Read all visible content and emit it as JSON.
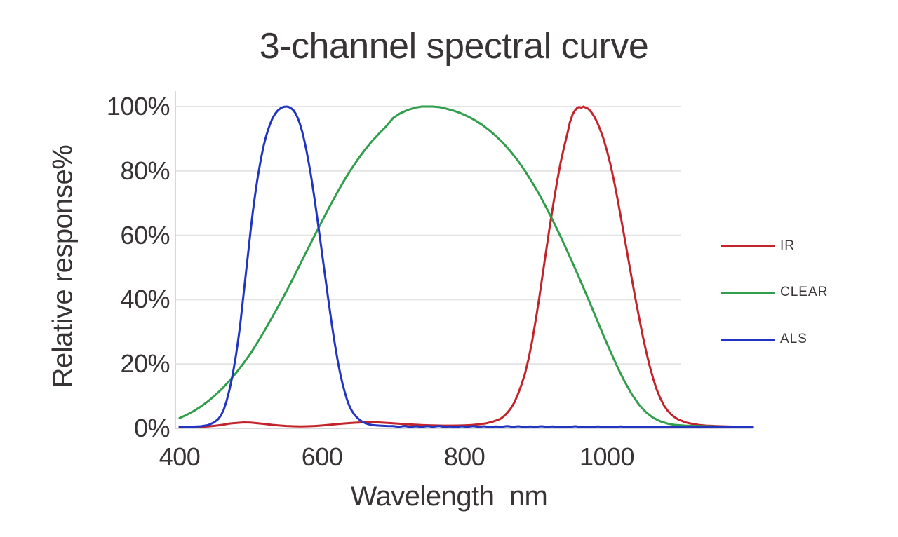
{
  "title": "3-channel spectral curve",
  "axes": {
    "x_label": "Wavelength  nm",
    "y_label": "Relative response%"
  },
  "legend": [
    {
      "label": "IR"
    },
    {
      "label": "CLEAR"
    },
    {
      "label": "ALS"
    }
  ],
  "colors": {
    "background": "#ffffff",
    "text": "#383435",
    "grid": "#e4e4e4",
    "axis": "#d8d8d8"
  },
  "chart_data": {
    "type": "line",
    "title": "3-channel spectral curve",
    "xlabel": "Wavelength  nm",
    "ylabel": "Relative response%",
    "xlim": [
      400,
      1205
    ],
    "ylim": [
      0,
      100
    ],
    "x_ticks": [
      400,
      600,
      800,
      1000
    ],
    "y_ticks": [
      0,
      20,
      40,
      60,
      80,
      100
    ],
    "y_tick_labels": [
      "0%",
      "20%",
      "40%",
      "60%",
      "80%",
      "100%"
    ],
    "grid": "horizontal",
    "legend_position": "right",
    "series": [
      {
        "name": "IR",
        "color": "#c3242b",
        "points": [
          [
            400,
            0.3
          ],
          [
            420,
            0.4
          ],
          [
            440,
            0.6
          ],
          [
            450,
            0.8
          ],
          [
            460,
            1.1
          ],
          [
            470,
            1.5
          ],
          [
            480,
            1.7
          ],
          [
            490,
            1.85
          ],
          [
            500,
            1.8
          ],
          [
            510,
            1.6
          ],
          [
            520,
            1.35
          ],
          [
            530,
            1.1
          ],
          [
            540,
            0.9
          ],
          [
            550,
            0.75
          ],
          [
            560,
            0.65
          ],
          [
            570,
            0.6
          ],
          [
            580,
            0.65
          ],
          [
            590,
            0.75
          ],
          [
            600,
            0.9
          ],
          [
            610,
            1.1
          ],
          [
            620,
            1.3
          ],
          [
            630,
            1.5
          ],
          [
            640,
            1.65
          ],
          [
            650,
            1.8
          ],
          [
            660,
            1.88
          ],
          [
            670,
            1.92
          ],
          [
            680,
            1.85
          ],
          [
            690,
            1.72
          ],
          [
            700,
            1.58
          ],
          [
            710,
            1.42
          ],
          [
            720,
            1.28
          ],
          [
            730,
            1.15
          ],
          [
            740,
            1.03
          ],
          [
            750,
            0.95
          ],
          [
            760,
            0.9
          ],
          [
            770,
            0.86
          ],
          [
            780,
            0.85
          ],
          [
            790,
            0.88
          ],
          [
            800,
            0.93
          ],
          [
            810,
            1.05
          ],
          [
            820,
            1.25
          ],
          [
            830,
            1.55
          ],
          [
            840,
            2.1
          ],
          [
            850,
            2.9
          ],
          [
            855,
            3.7
          ],
          [
            860,
            4.8
          ],
          [
            865,
            6.2
          ],
          [
            870,
            8
          ],
          [
            875,
            10.5
          ],
          [
            880,
            13.5
          ],
          [
            885,
            17
          ],
          [
            890,
            21.5
          ],
          [
            895,
            27
          ],
          [
            900,
            33.5
          ],
          [
            905,
            40.5
          ],
          [
            910,
            48
          ],
          [
            915,
            55.5
          ],
          [
            920,
            63
          ],
          [
            925,
            70
          ],
          [
            930,
            76.5
          ],
          [
            935,
            82.5
          ],
          [
            940,
            87.5
          ],
          [
            945,
            92
          ],
          [
            948,
            95
          ],
          [
            952,
            97.6
          ],
          [
            955,
            98.7
          ],
          [
            958,
            99.5
          ],
          [
            961,
            99.9
          ],
          [
            964,
            99.6
          ],
          [
            967,
            100
          ],
          [
            970,
            99.7
          ],
          [
            974,
            99.3
          ],
          [
            978,
            98.3
          ],
          [
            982,
            97
          ],
          [
            986,
            95.3
          ],
          [
            990,
            93.2
          ],
          [
            995,
            90.2
          ],
          [
            1000,
            86.4
          ],
          [
            1005,
            82
          ],
          [
            1010,
            77
          ],
          [
            1015,
            71.3
          ],
          [
            1020,
            65.2
          ],
          [
            1025,
            59
          ],
          [
            1030,
            52.8
          ],
          [
            1035,
            46.6
          ],
          [
            1040,
            40.5
          ],
          [
            1045,
            34.7
          ],
          [
            1050,
            29.2
          ],
          [
            1055,
            24.1
          ],
          [
            1060,
            19.5
          ],
          [
            1065,
            15.5
          ],
          [
            1070,
            12.1
          ],
          [
            1075,
            9.4
          ],
          [
            1080,
            7.2
          ],
          [
            1085,
            5.6
          ],
          [
            1090,
            4.4
          ],
          [
            1095,
            3.5
          ],
          [
            1100,
            2.8
          ],
          [
            1110,
            1.9
          ],
          [
            1120,
            1.4
          ],
          [
            1130,
            1.05
          ],
          [
            1140,
            0.85
          ],
          [
            1160,
            0.65
          ],
          [
            1180,
            0.52
          ],
          [
            1205,
            0.42
          ]
        ]
      },
      {
        "name": "CLEAR",
        "color": "#319e4c",
        "points": [
          [
            400,
            3.2
          ],
          [
            410,
            4.2
          ],
          [
            420,
            5.4
          ],
          [
            430,
            6.8
          ],
          [
            440,
            8.4
          ],
          [
            450,
            10.3
          ],
          [
            460,
            12.4
          ],
          [
            470,
            14.8
          ],
          [
            480,
            17.4
          ],
          [
            490,
            20.3
          ],
          [
            500,
            23.4
          ],
          [
            510,
            26.9
          ],
          [
            520,
            30.6
          ],
          [
            530,
            34.5
          ],
          [
            540,
            38.5
          ],
          [
            550,
            42.6
          ],
          [
            560,
            46.9
          ],
          [
            570,
            51.3
          ],
          [
            580,
            55.7
          ],
          [
            590,
            60.1
          ],
          [
            600,
            64.4
          ],
          [
            610,
            68.6
          ],
          [
            620,
            72.7
          ],
          [
            630,
            76.6
          ],
          [
            640,
            80.2
          ],
          [
            650,
            83.5
          ],
          [
            660,
            86.5
          ],
          [
            670,
            89.2
          ],
          [
            680,
            91.6
          ],
          [
            690,
            93.8
          ],
          [
            700,
            96.5
          ],
          [
            710,
            97.9
          ],
          [
            720,
            98.9
          ],
          [
            730,
            99.6
          ],
          [
            740,
            100
          ],
          [
            755,
            100
          ],
          [
            765,
            99.8
          ],
          [
            775,
            99.3
          ],
          [
            785,
            98.7
          ],
          [
            795,
            97.9
          ],
          [
            805,
            96.9
          ],
          [
            815,
            95.7
          ],
          [
            825,
            94.3
          ],
          [
            835,
            92.6
          ],
          [
            845,
            90.7
          ],
          [
            855,
            88.5
          ],
          [
            865,
            86
          ],
          [
            875,
            83.2
          ],
          [
            885,
            80
          ],
          [
            895,
            76.5
          ],
          [
            905,
            72.7
          ],
          [
            915,
            68.6
          ],
          [
            925,
            64.2
          ],
          [
            935,
            59.6
          ],
          [
            945,
            54.8
          ],
          [
            955,
            49.9
          ],
          [
            965,
            44.8
          ],
          [
            975,
            39.6
          ],
          [
            985,
            34.3
          ],
          [
            995,
            29
          ],
          [
            1005,
            23.9
          ],
          [
            1015,
            19
          ],
          [
            1025,
            14.5
          ],
          [
            1035,
            10.6
          ],
          [
            1045,
            7.4
          ],
          [
            1055,
            5
          ],
          [
            1065,
            3.3
          ],
          [
            1075,
            2.2
          ],
          [
            1085,
            1.5
          ],
          [
            1095,
            1.1
          ],
          [
            1110,
            0.85
          ],
          [
            1130,
            0.7
          ],
          [
            1150,
            0.6
          ],
          [
            1175,
            0.5
          ],
          [
            1205,
            0.45
          ]
        ]
      },
      {
        "name": "ALS",
        "color": "#2135c2",
        "points": [
          [
            400,
            0.5
          ],
          [
            410,
            0.5
          ],
          [
            420,
            0.55
          ],
          [
            430,
            0.65
          ],
          [
            440,
            1
          ],
          [
            448,
            1.8
          ],
          [
            454,
            2.8
          ],
          [
            458,
            4
          ],
          [
            462,
            5.8
          ],
          [
            466,
            8.5
          ],
          [
            470,
            12
          ],
          [
            473,
            15
          ],
          [
            476,
            18.5
          ],
          [
            479,
            22.5
          ],
          [
            482,
            27
          ],
          [
            485,
            32
          ],
          [
            488,
            38
          ],
          [
            491,
            44
          ],
          [
            494,
            50
          ],
          [
            497,
            56
          ],
          [
            500,
            62
          ],
          [
            503,
            67.5
          ],
          [
            506,
            72.5
          ],
          [
            509,
            77
          ],
          [
            512,
            81
          ],
          [
            515,
            84.6
          ],
          [
            518,
            87.8
          ],
          [
            521,
            90.4
          ],
          [
            524,
            92.6
          ],
          [
            527,
            94.5
          ],
          [
            530,
            96.1
          ],
          [
            534,
            97.7
          ],
          [
            538,
            98.8
          ],
          [
            542,
            99.5
          ],
          [
            546,
            99.9
          ],
          [
            550,
            100
          ],
          [
            553,
            99.9
          ],
          [
            557,
            99.4
          ],
          [
            560,
            98.8
          ],
          [
            563,
            97.8
          ],
          [
            566,
            96.4
          ],
          [
            569,
            94.6
          ],
          [
            572,
            92.3
          ],
          [
            575,
            89.6
          ],
          [
            578,
            86.5
          ],
          [
            581,
            83
          ],
          [
            584,
            79.2
          ],
          [
            587,
            75
          ],
          [
            590,
            70.5
          ],
          [
            593,
            65.8
          ],
          [
            596,
            61
          ],
          [
            599,
            56.1
          ],
          [
            602,
            51.2
          ],
          [
            605,
            46.3
          ],
          [
            608,
            41.4
          ],
          [
            611,
            36.6
          ],
          [
            614,
            32
          ],
          [
            617,
            27.6
          ],
          [
            620,
            23.6
          ],
          [
            623,
            19.9
          ],
          [
            626,
            16.6
          ],
          [
            629,
            13.7
          ],
          [
            632,
            11.2
          ],
          [
            635,
            9
          ],
          [
            638,
            7.2
          ],
          [
            641,
            5.8
          ],
          [
            645,
            4.4
          ],
          [
            649,
            3.4
          ],
          [
            653,
            2.6
          ],
          [
            657,
            2
          ],
          [
            661,
            1.6
          ],
          [
            666,
            1.25
          ],
          [
            671,
            1
          ],
          [
            681,
            0.85
          ],
          [
            691,
            0.75
          ],
          [
            700,
            0.7
          ],
          [
            708,
            0.5
          ],
          [
            716,
            0.75
          ],
          [
            724,
            0.45
          ],
          [
            732,
            0.65
          ],
          [
            740,
            0.45
          ],
          [
            748,
            0.7
          ],
          [
            756,
            0.5
          ],
          [
            764,
            0.75
          ],
          [
            772,
            0.45
          ],
          [
            780,
            0.6
          ],
          [
            788,
            0.42
          ],
          [
            796,
            0.65
          ],
          [
            804,
            0.48
          ],
          [
            812,
            0.7
          ],
          [
            820,
            0.5
          ],
          [
            828,
            0.65
          ],
          [
            836,
            0.42
          ],
          [
            844,
            0.6
          ],
          [
            852,
            0.48
          ],
          [
            860,
            0.7
          ],
          [
            868,
            0.5
          ],
          [
            876,
            0.65
          ],
          [
            884,
            0.42
          ],
          [
            892,
            0.6
          ],
          [
            900,
            0.48
          ],
          [
            908,
            0.65
          ],
          [
            916,
            0.48
          ],
          [
            924,
            0.6
          ],
          [
            932,
            0.42
          ],
          [
            940,
            0.55
          ],
          [
            948,
            0.48
          ],
          [
            956,
            0.65
          ],
          [
            964,
            0.42
          ],
          [
            972,
            0.55
          ],
          [
            980,
            0.48
          ],
          [
            988,
            0.6
          ],
          [
            996,
            0.42
          ],
          [
            1004,
            0.55
          ],
          [
            1012,
            0.48
          ],
          [
            1020,
            0.6
          ],
          [
            1028,
            0.42
          ],
          [
            1036,
            0.55
          ],
          [
            1044,
            0.4
          ],
          [
            1052,
            0.5
          ],
          [
            1060,
            0.45
          ],
          [
            1068,
            0.55
          ],
          [
            1076,
            0.4
          ],
          [
            1084,
            0.5
          ],
          [
            1092,
            0.45
          ],
          [
            1100,
            0.5
          ],
          [
            1112,
            0.4
          ],
          [
            1124,
            0.48
          ],
          [
            1136,
            0.4
          ],
          [
            1148,
            0.45
          ],
          [
            1160,
            0.38
          ],
          [
            1172,
            0.42
          ],
          [
            1184,
            0.35
          ],
          [
            1205,
            0.38
          ]
        ]
      }
    ]
  }
}
